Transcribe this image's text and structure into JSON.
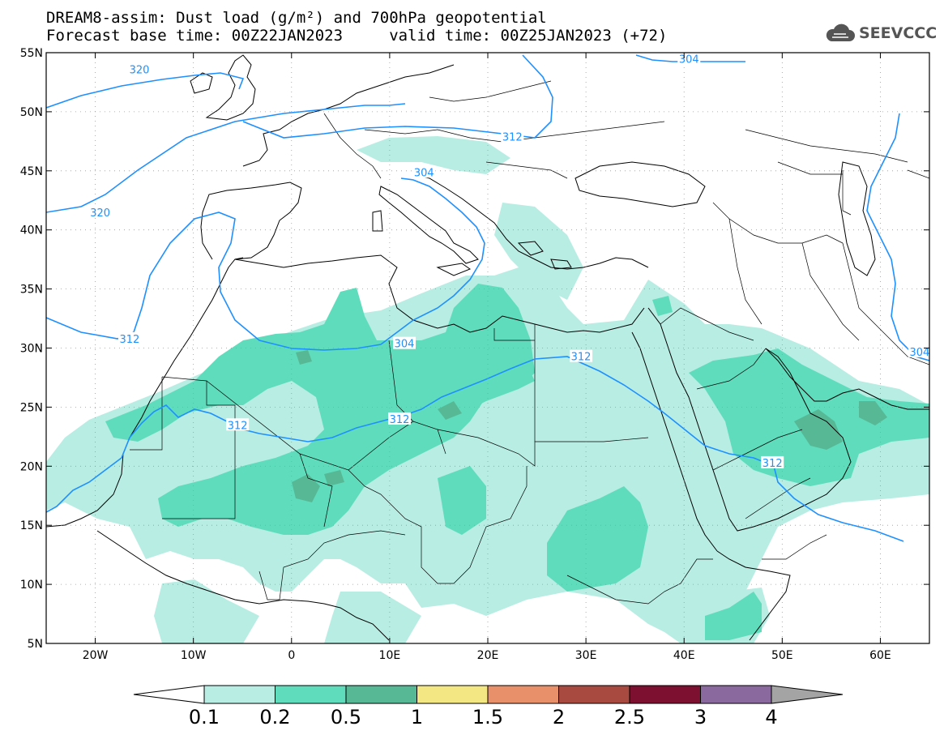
{
  "title": {
    "line1": "DREAM8-assim: Dust load (g/m²) and 700hPa geopotential",
    "line2": "Forecast base time: 00Z22JAN2023     valid time: 00Z25JAN2023 (+72)"
  },
  "logo": {
    "text": "SEEVCCC",
    "icon": "cloud-icon"
  },
  "map": {
    "lon_range": [
      -25,
      65
    ],
    "lat_range": [
      5,
      55
    ],
    "lon_ticks": [
      {
        "v": -20,
        "label": "20W"
      },
      {
        "v": -10,
        "label": "10W"
      },
      {
        "v": 0,
        "label": "0"
      },
      {
        "v": 10,
        "label": "10E"
      },
      {
        "v": 20,
        "label": "20E"
      },
      {
        "v": 30,
        "label": "30E"
      },
      {
        "v": 40,
        "label": "40E"
      },
      {
        "v": 50,
        "label": "50E"
      },
      {
        "v": 60,
        "label": "60E"
      }
    ],
    "lat_ticks": [
      {
        "v": 55,
        "label": "55N"
      },
      {
        "v": 50,
        "label": "50N"
      },
      {
        "v": 45,
        "label": "45N"
      },
      {
        "v": 40,
        "label": "40N"
      },
      {
        "v": 35,
        "label": "35N"
      },
      {
        "v": 30,
        "label": "30N"
      },
      {
        "v": 25,
        "label": "25N"
      },
      {
        "v": 20,
        "label": "20N"
      },
      {
        "v": 15,
        "label": "15N"
      },
      {
        "v": 10,
        "label": "10N"
      },
      {
        "v": 5,
        "label": "5N"
      }
    ],
    "grid": "dotted"
  },
  "contours": {
    "color": "#1e90ff",
    "labels": [
      {
        "text": "320",
        "lon": -15.5,
        "lat": 53.6
      },
      {
        "text": "320",
        "lon": -19.5,
        "lat": 41.5
      },
      {
        "text": "312",
        "lon": 22.5,
        "lat": 47.9
      },
      {
        "text": "304",
        "lon": 40.5,
        "lat": 54.5
      },
      {
        "text": "304",
        "lon": 13.5,
        "lat": 44.9
      },
      {
        "text": "304",
        "lon": 11.5,
        "lat": 30.4
      },
      {
        "text": "312",
        "lon": -16.5,
        "lat": 30.8
      },
      {
        "text": "312",
        "lon": 29.5,
        "lat": 29.3
      },
      {
        "text": "312",
        "lon": -5.5,
        "lat": 23.5
      },
      {
        "text": "312",
        "lon": 11.0,
        "lat": 24.0
      },
      {
        "text": "312",
        "lon": 49.0,
        "lat": 20.3
      },
      {
        "text": "304",
        "lon": 64.0,
        "lat": 29.7
      }
    ]
  },
  "colorbar": {
    "labels": [
      "0.1",
      "0.2",
      "0.5",
      "1",
      "1.5",
      "2",
      "2.5",
      "3",
      "4"
    ],
    "colors": [
      "#b8ede4",
      "#5fdcbc",
      "#57b896",
      "#f2e782",
      "#e8906a",
      "#a84a3f",
      "#7d1030",
      "#8a6a9e",
      "#a4a4a4"
    ]
  },
  "dust_colors": {
    "low": "#b8ede4",
    "mid": "#5fdcbc",
    "high": "#57b896"
  }
}
